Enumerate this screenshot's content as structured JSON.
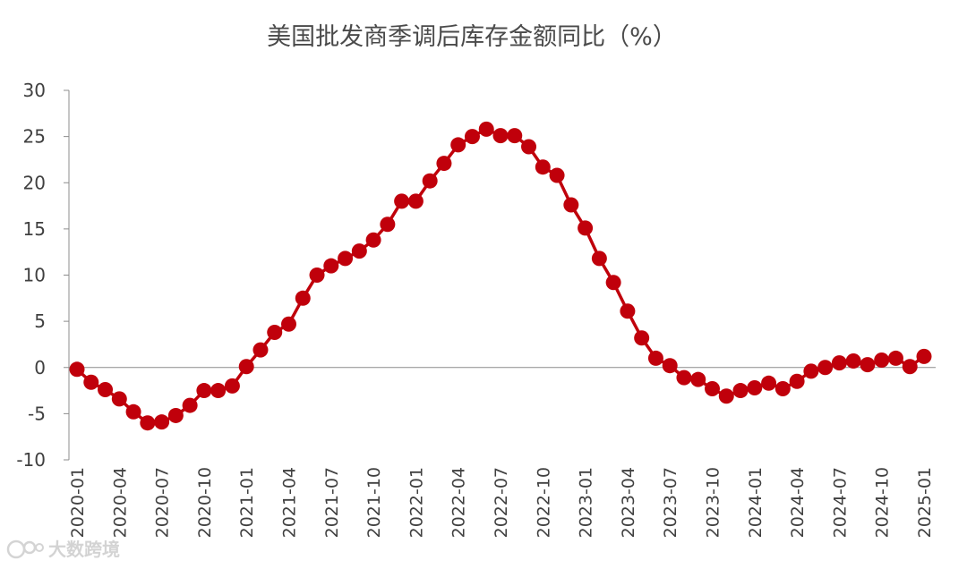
{
  "chart_data": {
    "type": "line",
    "title": "美国批发商季调后库存金额同比（%）",
    "xlabel": "",
    "ylabel": "",
    "ylim": [
      -10,
      30
    ],
    "yticks": [
      -10,
      -5,
      0,
      5,
      10,
      15,
      20,
      25,
      30
    ],
    "xtick_labels": [
      "2020-01",
      "2020-04",
      "2020-07",
      "2020-10",
      "2021-01",
      "2021-04",
      "2021-07",
      "2021-10",
      "2022-01",
      "2022-04",
      "2022-07",
      "2022-10",
      "2023-01",
      "2023-04",
      "2023-07",
      "2023-10",
      "2024-01",
      "2024-04",
      "2024-07",
      "2024-10",
      "2025-01"
    ],
    "grid": false,
    "legend": "none",
    "series": [
      {
        "color": "#c0000b",
        "x": [
          "2020-01",
          "2020-02",
          "2020-03",
          "2020-04",
          "2020-05",
          "2020-06",
          "2020-07",
          "2020-08",
          "2020-09",
          "2020-10",
          "2020-11",
          "2020-12",
          "2021-01",
          "2021-02",
          "2021-03",
          "2021-04",
          "2021-05",
          "2021-06",
          "2021-07",
          "2021-08",
          "2021-09",
          "2021-10",
          "2021-11",
          "2021-12",
          "2022-01",
          "2022-02",
          "2022-03",
          "2022-04",
          "2022-05",
          "2022-06",
          "2022-07",
          "2022-08",
          "2022-09",
          "2022-10",
          "2022-11",
          "2022-12",
          "2023-01",
          "2023-02",
          "2023-03",
          "2023-04",
          "2023-05",
          "2023-06",
          "2023-07",
          "2023-08",
          "2023-09",
          "2023-10",
          "2023-11",
          "2023-12",
          "2024-01",
          "2024-02",
          "2024-03",
          "2024-04",
          "2024-05",
          "2024-06",
          "2024-07",
          "2024-08",
          "2024-09",
          "2024-10",
          "2024-11",
          "2024-12",
          "2025-01"
        ],
        "values": [
          -0.2,
          -1.6,
          -2.4,
          -3.4,
          -4.8,
          -6.0,
          -5.9,
          -5.2,
          -4.1,
          -2.5,
          -2.5,
          -2.0,
          0.1,
          1.9,
          3.8,
          4.7,
          7.5,
          10.0,
          11.0,
          11.8,
          12.6,
          13.8,
          15.5,
          18.0,
          18.0,
          20.2,
          22.1,
          24.1,
          25.0,
          25.8,
          25.1,
          25.1,
          23.9,
          21.7,
          20.8,
          17.6,
          15.1,
          11.8,
          9.2,
          6.1,
          3.2,
          1.0,
          0.2,
          -1.1,
          -1.3,
          -2.3,
          -3.1,
          -2.5,
          -2.2,
          -1.7,
          -2.3,
          -1.5,
          -0.4,
          0.0,
          0.5,
          0.7,
          0.3,
          0.8,
          1.0,
          0.1,
          1.2
        ]
      }
    ]
  },
  "watermark": {
    "text": "大数跨境"
  }
}
